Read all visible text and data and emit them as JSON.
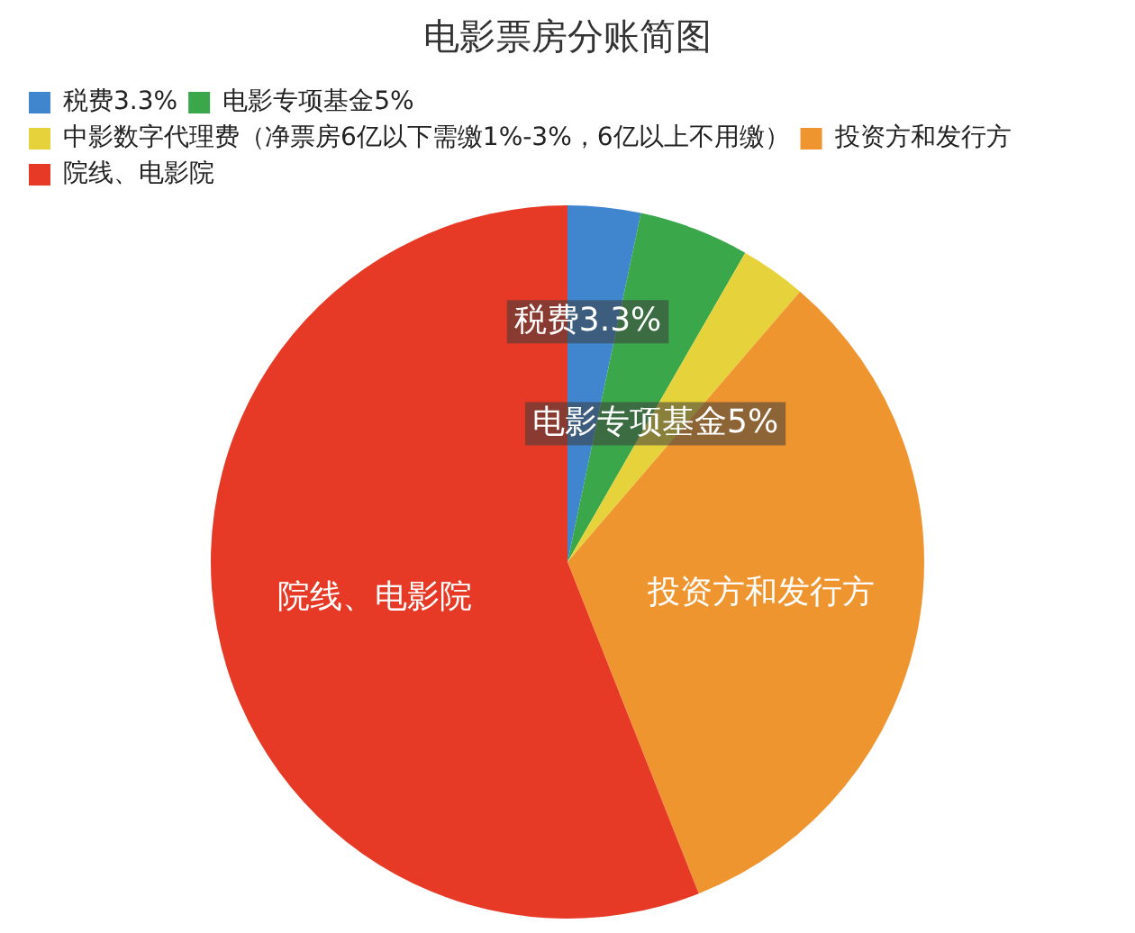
{
  "chart_data": {
    "type": "pie",
    "title": "电影票房分账简图",
    "categories": [
      "税费3.3%",
      "电影专项基金5%",
      "中影数字代理费（净票房6亿以下需缴1%-3%，6亿以上不用缴）",
      "投资方和发行方",
      "院线、电影院"
    ],
    "values": [
      3.3,
      5,
      3,
      32.7,
      56
    ],
    "colors": [
      "#3f86cf",
      "#3aa74b",
      "#e6d33c",
      "#ef952f",
      "#e63a27"
    ],
    "value_labels": [
      "税费3.3%",
      "电影专项基金5%",
      null,
      "投资方和发行方",
      "院线、电影院"
    ],
    "legend": "top left"
  }
}
